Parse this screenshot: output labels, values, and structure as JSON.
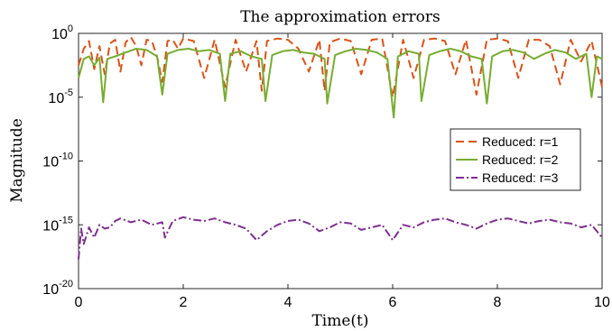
{
  "chart_data": {
    "type": "line",
    "title": "The approximation errors",
    "xlabel": "Time(t)",
    "ylabel": "Magnitude",
    "xlim": [
      0,
      10
    ],
    "ylim_log10": [
      -20,
      0
    ],
    "y_scale": "log",
    "grid": false,
    "legend_position": "right",
    "x_ticks": [
      "0",
      "2",
      "4",
      "6",
      "8",
      "10"
    ],
    "y_tick_mantissa": "10",
    "y_tick_exponents": [
      "-20",
      "-15",
      "-10",
      "-5",
      "0"
    ],
    "series": [
      {
        "name": "Reduced: r=1",
        "color": "#D95319",
        "style": "dashed",
        "x": [
          0,
          0.1,
          0.2,
          0.3,
          0.4,
          0.5,
          0.6,
          0.7,
          0.8,
          0.9,
          1.0,
          1.1,
          1.2,
          1.3,
          1.4,
          1.5,
          1.6,
          1.7,
          1.8,
          1.9,
          2.0,
          2.2,
          2.4,
          2.6,
          2.8,
          3.0,
          3.2,
          3.4,
          3.5,
          3.6,
          3.8,
          4.0,
          4.2,
          4.4,
          4.6,
          4.7,
          4.8,
          5.0,
          5.2,
          5.4,
          5.6,
          5.8,
          6.0,
          6.2,
          6.4,
          6.6,
          6.8,
          7.0,
          7.2,
          7.4,
          7.6,
          7.8,
          8.0,
          8.2,
          8.4,
          8.6,
          8.8,
          9.0,
          9.2,
          9.4,
          9.6,
          9.8,
          10.0
        ],
        "y_log10": [
          -2.5,
          -1.2,
          -0.6,
          -2.8,
          -1.0,
          -3.2,
          -0.8,
          -0.5,
          -3.0,
          -0.7,
          -0.3,
          -1.0,
          -2.5,
          -0.5,
          -0.6,
          -1.8,
          -3.8,
          -0.6,
          -0.5,
          -1.2,
          -0.4,
          -0.6,
          -3.5,
          -0.5,
          -4.2,
          -0.5,
          -3.0,
          -0.6,
          -4.5,
          -0.6,
          -0.4,
          -0.5,
          -1.2,
          -3.0,
          -0.5,
          -4.5,
          -0.7,
          -0.4,
          -0.6,
          -3.2,
          -0.5,
          -0.4,
          -5.0,
          -0.5,
          -3.5,
          -0.5,
          -0.4,
          -0.6,
          -3.2,
          -0.5,
          -4.8,
          -0.5,
          -0.4,
          -0.6,
          -3.5,
          -0.5,
          -0.5,
          -1.0,
          -4.0,
          -0.5,
          -2.2,
          -0.6,
          -4.2
        ]
      },
      {
        "name": "Reduced: r=2",
        "color": "#77AC30",
        "style": "solid",
        "x": [
          0,
          0.1,
          0.2,
          0.3,
          0.4,
          0.47,
          0.55,
          0.7,
          0.9,
          1.1,
          1.3,
          1.5,
          1.6,
          1.7,
          1.9,
          2.1,
          2.3,
          2.5,
          2.7,
          2.8,
          2.9,
          3.1,
          3.3,
          3.5,
          3.57,
          3.7,
          3.9,
          4.1,
          4.3,
          4.5,
          4.7,
          4.75,
          4.9,
          5.1,
          5.3,
          5.5,
          5.7,
          5.9,
          6.02,
          6.1,
          6.3,
          6.5,
          6.55,
          6.7,
          6.9,
          7.1,
          7.3,
          7.5,
          7.7,
          7.8,
          7.9,
          8.1,
          8.3,
          8.5,
          8.7,
          8.9,
          9.1,
          9.3,
          9.5,
          9.7,
          9.8,
          9.9,
          10.0
        ],
        "y_log10": [
          -3.5,
          -2.0,
          -1.8,
          -2.5,
          -1.9,
          -5.4,
          -2.0,
          -1.8,
          -1.5,
          -1.2,
          -1.3,
          -1.8,
          -4.8,
          -1.6,
          -1.3,
          -1.2,
          -1.4,
          -1.3,
          -1.6,
          -5.3,
          -1.6,
          -1.4,
          -1.8,
          -2.0,
          -5.3,
          -1.7,
          -1.4,
          -1.3,
          -1.5,
          -1.6,
          -2.0,
          -5.5,
          -1.7,
          -1.4,
          -1.2,
          -1.3,
          -1.5,
          -2.0,
          -6.6,
          -1.8,
          -1.4,
          -1.6,
          -5.3,
          -1.7,
          -1.4,
          -1.2,
          -1.4,
          -1.8,
          -2.0,
          -5.5,
          -1.8,
          -1.4,
          -1.3,
          -1.5,
          -2.0,
          -1.6,
          -1.3,
          -1.5,
          -2.0,
          -1.6,
          -5.0,
          -1.8,
          -2.0
        ]
      },
      {
        "name": "Reduced: r=3",
        "color": "#7E2F8E",
        "style": "dashdot",
        "x": [
          0,
          0.05,
          0.1,
          0.2,
          0.3,
          0.4,
          0.5,
          0.6,
          0.7,
          0.8,
          1.0,
          1.2,
          1.4,
          1.6,
          1.65,
          1.8,
          2.0,
          2.2,
          2.4,
          2.6,
          2.8,
          3.0,
          3.2,
          3.4,
          3.6,
          3.8,
          4.0,
          4.2,
          4.4,
          4.6,
          4.8,
          5.0,
          5.2,
          5.4,
          5.6,
          5.8,
          6.0,
          6.2,
          6.4,
          6.6,
          6.8,
          7.0,
          7.2,
          7.4,
          7.6,
          7.8,
          8.0,
          8.2,
          8.4,
          8.6,
          8.8,
          9.0,
          9.2,
          9.4,
          9.6,
          9.8,
          10.0
        ],
        "y_log10": [
          -17.7,
          -15.3,
          -16.5,
          -15.2,
          -16.0,
          -15.0,
          -15.3,
          -15.2,
          -14.7,
          -14.5,
          -14.8,
          -14.6,
          -15.0,
          -14.8,
          -16.0,
          -14.7,
          -14.4,
          -14.6,
          -14.7,
          -14.5,
          -14.8,
          -15.0,
          -15.3,
          -16.2,
          -15.5,
          -15.0,
          -14.7,
          -14.6,
          -14.9,
          -15.5,
          -15.2,
          -14.8,
          -14.9,
          -15.4,
          -15.2,
          -15.0,
          -16.2,
          -15.0,
          -15.2,
          -14.8,
          -14.6,
          -14.5,
          -14.8,
          -15.0,
          -15.3,
          -14.9,
          -14.6,
          -14.5,
          -14.7,
          -14.9,
          -14.7,
          -14.6,
          -14.8,
          -14.9,
          -15.2,
          -15.0,
          -16.0
        ]
      }
    ]
  }
}
